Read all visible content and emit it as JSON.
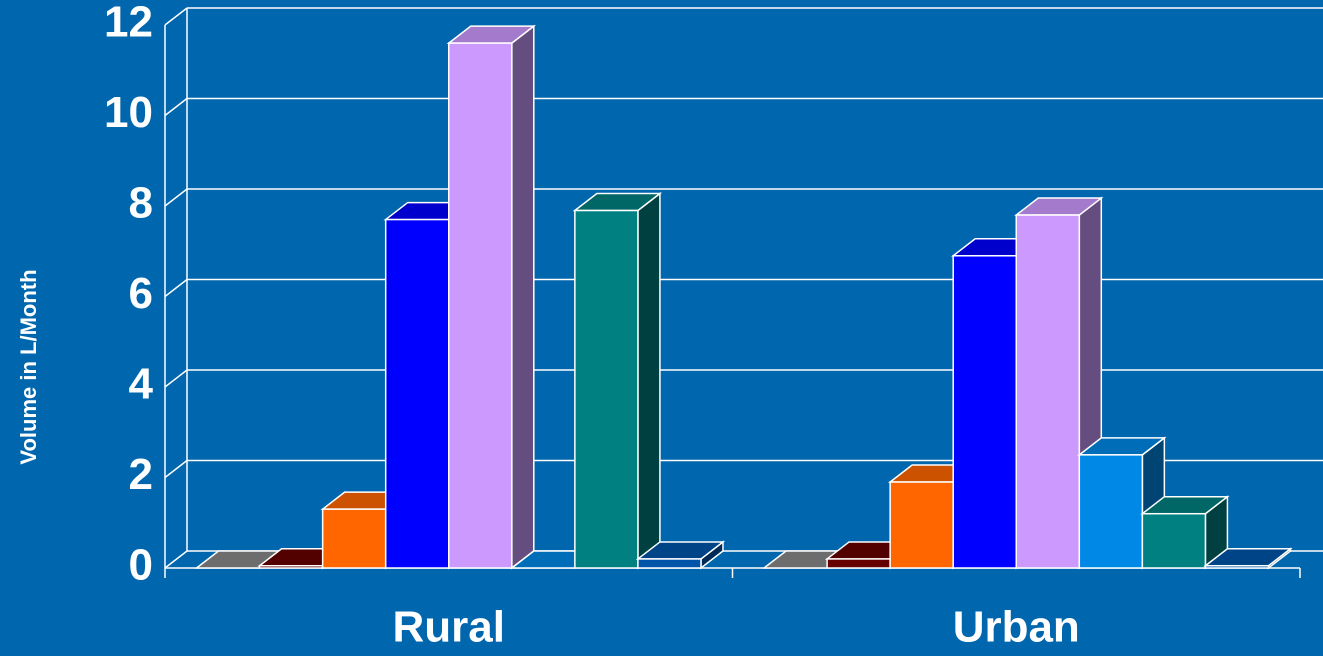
{
  "chart_data": {
    "type": "bar3d",
    "y_label": "Volume in L/Month",
    "categories": [
      "Rural",
      "Urban"
    ],
    "ylim": [
      0,
      12
    ],
    "yticks": [
      0,
      2,
      4,
      6,
      8,
      10,
      12
    ],
    "grid": true,
    "series": [
      {
        "color": "#888888",
        "values": [
          0,
          0
        ]
      },
      {
        "color": "#660000",
        "values": [
          0.05,
          0.2
        ]
      },
      {
        "color": "#ff6600",
        "values": [
          1.3,
          1.9
        ]
      },
      {
        "color": "#0000ff",
        "values": [
          7.7,
          6.9
        ]
      },
      {
        "color": "#cc99ff",
        "values": [
          11.6,
          7.8
        ]
      },
      {
        "color": "#0088e6",
        "values": [
          0,
          2.5
        ]
      },
      {
        "color": "#008080",
        "values": [
          7.9,
          1.2
        ]
      },
      {
        "color": "#0055aa",
        "values": [
          0.2,
          0.05
        ]
      }
    ]
  }
}
